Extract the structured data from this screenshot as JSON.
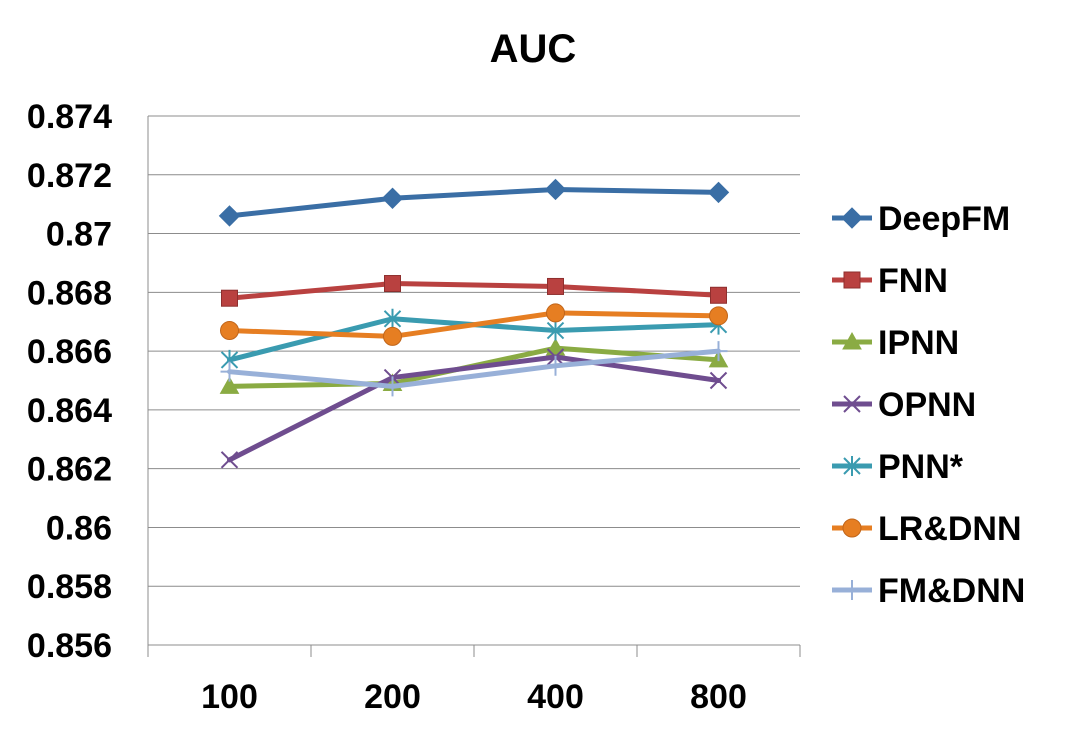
{
  "chart_data": {
    "type": "line",
    "title": "AUC",
    "xlabel": "",
    "ylabel": "",
    "categories": [
      "100",
      "200",
      "400",
      "800"
    ],
    "ylim": [
      0.856,
      0.874
    ],
    "yticks": [
      0.874,
      0.872,
      0.87,
      0.868,
      0.866,
      0.864,
      0.862,
      0.86,
      0.858,
      0.856
    ],
    "ytick_labels": [
      "0.874",
      "0.872",
      "0.87",
      "0.868",
      "0.866",
      "0.864",
      "0.862",
      "0.86",
      "0.858",
      "0.856"
    ],
    "grid": "horizontal",
    "legend_position": "right",
    "series": [
      {
        "name": "DeepFM",
        "color": "#3a6ea5",
        "marker": "diamond",
        "values": [
          0.8706,
          0.8712,
          0.8715,
          0.8714
        ]
      },
      {
        "name": "FNN",
        "color": "#b94140",
        "marker": "square",
        "values": [
          0.8678,
          0.8683,
          0.8682,
          0.8679
        ]
      },
      {
        "name": "IPNN",
        "color": "#8aab43",
        "marker": "triangle",
        "values": [
          0.8648,
          0.8649,
          0.8661,
          0.8657
        ]
      },
      {
        "name": "OPNN",
        "color": "#6f4d8f",
        "marker": "x",
        "values": [
          0.8623,
          0.8651,
          0.8658,
          0.865
        ]
      },
      {
        "name": "PNN*",
        "color": "#3a9bb0",
        "marker": "star",
        "values": [
          0.8657,
          0.8671,
          0.8667,
          0.8669
        ]
      },
      {
        "name": "LR&DNN",
        "color": "#e67e22",
        "marker": "circle",
        "values": [
          0.8667,
          0.8665,
          0.8673,
          0.8672
        ]
      },
      {
        "name": "FM&DNN",
        "color": "#98b0d8",
        "marker": "plus",
        "values": [
          0.8653,
          0.8648,
          0.8655,
          0.866
        ]
      }
    ]
  }
}
